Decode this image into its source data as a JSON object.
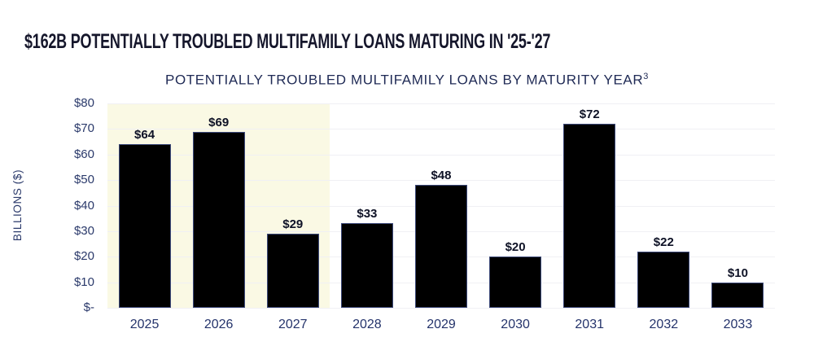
{
  "header": {
    "title": "$162B POTENTIALLY TROUBLED MULTIFAMILY LOANS MATURING IN '25-'27"
  },
  "chart": {
    "title": "POTENTIALLY TROUBLED MULTIFAMILY LOANS BY MATURITY YEAR",
    "title_superscript": "3",
    "y_axis_label": "BILLIONS ($)"
  },
  "chart_data": {
    "type": "bar",
    "title": "POTENTIALLY TROUBLED MULTIFAMILY LOANS BY MATURITY YEAR",
    "categories": [
      "2025",
      "2026",
      "2027",
      "2028",
      "2029",
      "2030",
      "2031",
      "2032",
      "2033"
    ],
    "values": [
      64,
      69,
      29,
      33,
      48,
      20,
      72,
      22,
      10
    ],
    "value_labels": [
      "$64",
      "$69",
      "$29",
      "$33",
      "$48",
      "$20",
      "$72",
      "$22",
      "$10"
    ],
    "xlabel": "",
    "ylabel": "BILLIONS ($)",
    "ylim": [
      0,
      80
    ],
    "ytick_step": 10,
    "ytick_labels_top_to_bottom": [
      "$80",
      "$70",
      "$60",
      "$50",
      "$40",
      "$30",
      "$20",
      "$10",
      "$-"
    ],
    "grid": "horizontal",
    "legend": "none",
    "highlighted_categories": [
      "2025",
      "2026",
      "2027"
    ],
    "bar_color": "#000000",
    "bar_border_color": "#3d4a7a",
    "highlight_color": "#faf9e4"
  },
  "colors": {
    "background": "#ffffff",
    "title_text": "#15162b",
    "subtitle_text": "#1f2a55",
    "axis_text": "#2b3a6b",
    "x_tick_text": "#24336b",
    "value_label_text": "#0e1226",
    "gridline": "#f0f0f4"
  }
}
